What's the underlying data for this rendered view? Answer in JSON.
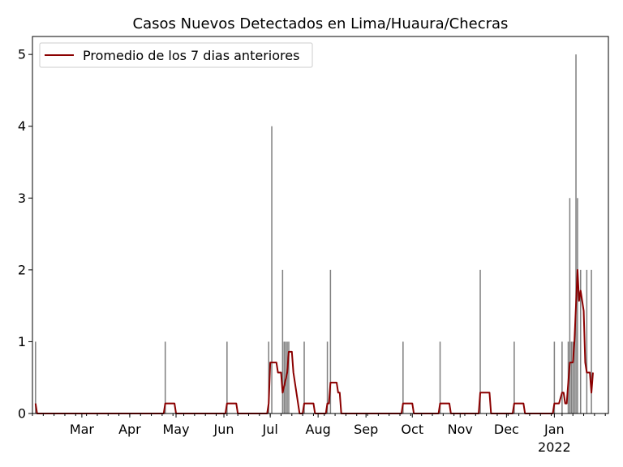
{
  "chart_data": {
    "type": "bar",
    "title": "Casos Nuevos Detectados en Lima/Huaura/Checras",
    "xlabel": "",
    "ylabel": "",
    "ylim": [
      0,
      5.25
    ],
    "yticks": [
      0,
      1,
      2,
      3,
      4,
      5
    ],
    "x_range": [
      "2021-01-28",
      "2022-02-05"
    ],
    "x_ticks": [
      {
        "date": "2021-03-01",
        "label": "Mar"
      },
      {
        "date": "2021-04-01",
        "label": "Apr"
      },
      {
        "date": "2021-05-01",
        "label": "May"
      },
      {
        "date": "2021-06-01",
        "label": "Jun"
      },
      {
        "date": "2021-07-01",
        "label": "Jul"
      },
      {
        "date": "2021-08-01",
        "label": "Aug"
      },
      {
        "date": "2021-09-01",
        "label": "Sep"
      },
      {
        "date": "2021-10-01",
        "label": "Oct"
      },
      {
        "date": "2021-11-01",
        "label": "Nov"
      },
      {
        "date": "2021-12-01",
        "label": "Dec"
      },
      {
        "date": "2022-01-01",
        "label": "Jan",
        "sublabel": "2022"
      }
    ],
    "bar_color": "#808080",
    "line_color": "#8b0000",
    "legend": {
      "position": "top-left",
      "entries": [
        "Promedio de los 7 dias anteriores"
      ]
    },
    "bars": [
      {
        "date": "2021-01-30",
        "value": 1
      },
      {
        "date": "2021-04-24",
        "value": 1
      },
      {
        "date": "2021-06-03",
        "value": 1
      },
      {
        "date": "2021-06-30",
        "value": 1
      },
      {
        "date": "2021-07-02",
        "value": 4
      },
      {
        "date": "2021-07-09",
        "value": 2
      },
      {
        "date": "2021-07-10",
        "value": 1
      },
      {
        "date": "2021-07-11",
        "value": 1
      },
      {
        "date": "2021-07-12",
        "value": 1
      },
      {
        "date": "2021-07-13",
        "value": 1
      },
      {
        "date": "2021-07-23",
        "value": 1
      },
      {
        "date": "2021-08-07",
        "value": 1
      },
      {
        "date": "2021-08-09",
        "value": 2
      },
      {
        "date": "2021-09-25",
        "value": 1
      },
      {
        "date": "2021-10-19",
        "value": 1
      },
      {
        "date": "2021-11-14",
        "value": 2
      },
      {
        "date": "2021-12-06",
        "value": 1
      },
      {
        "date": "2022-01-01",
        "value": 1
      },
      {
        "date": "2022-01-06",
        "value": 1
      },
      {
        "date": "2022-01-10",
        "value": 1
      },
      {
        "date": "2022-01-11",
        "value": 3
      },
      {
        "date": "2022-01-12",
        "value": 1
      },
      {
        "date": "2022-01-13",
        "value": 1
      },
      {
        "date": "2022-01-14",
        "value": 1
      },
      {
        "date": "2022-01-15",
        "value": 5
      },
      {
        "date": "2022-01-16",
        "value": 3
      },
      {
        "date": "2022-01-18",
        "value": 2
      },
      {
        "date": "2022-01-22",
        "value": 2
      },
      {
        "date": "2022-01-25",
        "value": 2
      }
    ],
    "series": [
      {
        "name": "Promedio de los 7 dias anteriores",
        "points": [
          [
            "2021-01-30",
            0.14
          ],
          [
            "2021-01-31",
            0.0
          ],
          [
            "2021-04-23",
            0.0
          ],
          [
            "2021-04-24",
            0.14
          ],
          [
            "2021-04-30",
            0.14
          ],
          [
            "2021-05-01",
            0.0
          ],
          [
            "2021-06-02",
            0.0
          ],
          [
            "2021-06-03",
            0.14
          ],
          [
            "2021-06-09",
            0.14
          ],
          [
            "2021-06-10",
            0.0
          ],
          [
            "2021-06-29",
            0.0
          ],
          [
            "2021-06-30",
            0.14
          ],
          [
            "2021-07-01",
            0.71
          ],
          [
            "2021-07-05",
            0.71
          ],
          [
            "2021-07-06",
            0.57
          ],
          [
            "2021-07-08",
            0.57
          ],
          [
            "2021-07-09",
            0.29
          ],
          [
            "2021-07-12",
            0.57
          ],
          [
            "2021-07-13",
            0.86
          ],
          [
            "2021-07-15",
            0.86
          ],
          [
            "2021-07-16",
            0.57
          ],
          [
            "2021-07-20",
            0.0
          ],
          [
            "2021-07-22",
            0.0
          ],
          [
            "2021-07-23",
            0.14
          ],
          [
            "2021-07-29",
            0.14
          ],
          [
            "2021-07-30",
            0.0
          ],
          [
            "2021-08-06",
            0.0
          ],
          [
            "2021-08-07",
            0.14
          ],
          [
            "2021-08-08",
            0.14
          ],
          [
            "2021-08-09",
            0.43
          ],
          [
            "2021-08-13",
            0.43
          ],
          [
            "2021-08-14",
            0.29
          ],
          [
            "2021-08-15",
            0.29
          ],
          [
            "2021-08-16",
            0.0
          ],
          [
            "2021-09-24",
            0.0
          ],
          [
            "2021-09-25",
            0.14
          ],
          [
            "2021-10-01",
            0.14
          ],
          [
            "2021-10-02",
            0.0
          ],
          [
            "2021-10-18",
            0.0
          ],
          [
            "2021-10-19",
            0.14
          ],
          [
            "2021-10-25",
            0.14
          ],
          [
            "2021-10-26",
            0.0
          ],
          [
            "2021-11-13",
            0.0
          ],
          [
            "2021-11-14",
            0.29
          ],
          [
            "2021-11-20",
            0.29
          ],
          [
            "2021-11-21",
            0.0
          ],
          [
            "2021-12-05",
            0.0
          ],
          [
            "2021-12-06",
            0.14
          ],
          [
            "2021-12-12",
            0.14
          ],
          [
            "2021-12-13",
            0.0
          ],
          [
            "2021-12-31",
            0.0
          ],
          [
            "2022-01-01",
            0.14
          ],
          [
            "2022-01-04",
            0.14
          ],
          [
            "2022-01-06",
            0.29
          ],
          [
            "2022-01-07",
            0.29
          ],
          [
            "2022-01-08",
            0.14
          ],
          [
            "2022-01-09",
            0.14
          ],
          [
            "2022-01-11",
            0.71
          ],
          [
            "2022-01-13",
            0.71
          ],
          [
            "2022-01-14",
            1.0
          ],
          [
            "2022-01-16",
            2.0
          ],
          [
            "2022-01-17",
            1.57
          ],
          [
            "2022-01-18",
            1.71
          ],
          [
            "2022-01-20",
            1.43
          ],
          [
            "2022-01-21",
            0.71
          ],
          [
            "2022-01-22",
            0.57
          ],
          [
            "2022-01-24",
            0.57
          ],
          [
            "2022-01-25",
            0.29
          ],
          [
            "2022-01-26",
            0.57
          ]
        ]
      }
    ]
  }
}
